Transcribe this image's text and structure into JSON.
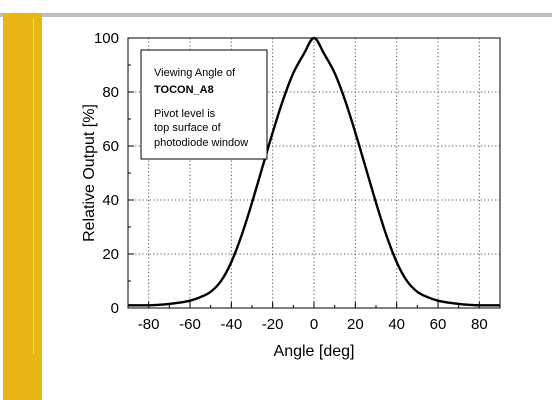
{
  "colors": {
    "accent_bar": "#e8b514",
    "top_rule": "#bdbdbd",
    "grid": "#555555",
    "line": "#000000"
  },
  "chart_data": {
    "type": "line",
    "title": "",
    "xlabel": "Angle [deg]",
    "ylabel": "Relative Output [%]",
    "xlim": [
      -90,
      90
    ],
    "ylim": [
      0,
      100
    ],
    "xticks": [
      -80,
      -60,
      -40,
      -20,
      0,
      20,
      40,
      60,
      80
    ],
    "yticks": [
      0,
      20,
      40,
      60,
      80,
      100
    ],
    "grid": true,
    "annotation": {
      "lines": [
        "Viewing Angle of",
        "TOCON_A8",
        "",
        "Pivot level is",
        "top surface of",
        "photodiode window"
      ],
      "bold_line": 1,
      "placement": "top-left"
    },
    "series": [
      {
        "x": [
          -90,
          -85,
          -80,
          -75,
          -70,
          -65,
          -60,
          -55,
          -50,
          -45,
          -40,
          -35,
          -30,
          -25,
          -20,
          -15,
          -10,
          -5,
          0,
          5,
          10,
          15,
          20,
          25,
          30,
          35,
          40,
          45,
          50,
          55,
          60,
          65,
          70,
          75,
          80,
          85,
          90
        ],
        "y": [
          1,
          1,
          1,
          1.2,
          1.5,
          2,
          2.7,
          4,
          6,
          10,
          17,
          27,
          39,
          52,
          65,
          77,
          87,
          94,
          100,
          94,
          87,
          77,
          65,
          52,
          39,
          27,
          17,
          10,
          6,
          4,
          2.7,
          2,
          1.5,
          1.2,
          1,
          1,
          1
        ]
      }
    ]
  }
}
